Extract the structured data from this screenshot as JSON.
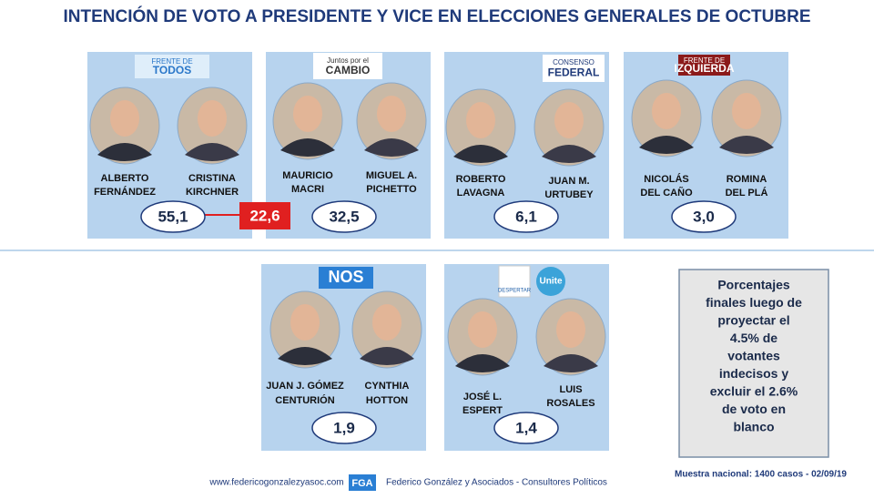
{
  "header": {
    "title": "INTENCIÓN DE VOTO A PRESIDENTE Y VICE EN ELECCIONES GENERALES DE OCTUBRE"
  },
  "panels": [
    {
      "logo": [
        "FRENTE DE",
        "TODOS"
      ],
      "candidates": [
        {
          "name": [
            "ALBERTO",
            "FERNÁNDEZ"
          ]
        },
        {
          "name": [
            "CRISTINA",
            "KIRCHNER"
          ]
        }
      ],
      "value": "55,1"
    },
    {
      "logo": [
        "Juntos por el",
        "CAMBIO"
      ],
      "candidates": [
        {
          "name": [
            "MAURICIO",
            "MACRI"
          ]
        },
        {
          "name": [
            "MIGUEL A.",
            "PICHETTO"
          ]
        }
      ],
      "value": "32,5"
    },
    {
      "logo": [
        "CONSENSO",
        "FEDERAL"
      ],
      "candidates": [
        {
          "name": [
            "ROBERTO",
            "LAVAGNA"
          ]
        },
        {
          "name": [
            "JUAN M.",
            "URTUBEY"
          ]
        }
      ],
      "value": "6,1"
    },
    {
      "logo": [
        "FRENTE DE",
        "IZQUIERDA"
      ],
      "candidates": [
        {
          "name": [
            "NICOLÁS",
            "DEL CAÑO"
          ]
        },
        {
          "name": [
            "ROMINA",
            "DEL PLÁ"
          ]
        }
      ],
      "value": "3,0"
    },
    {
      "logo": [
        "NOS"
      ],
      "candidates": [
        {
          "name": [
            "JUAN J. GÓMEZ",
            "CENTURIÓN"
          ]
        },
        {
          "name": [
            "CYNTHIA",
            "HOTTON"
          ]
        }
      ],
      "value": "1,9"
    },
    {
      "logo": [
        "DESPERTAR",
        "Unite"
      ],
      "candidates": [
        {
          "name": [
            "JOSÉ L.",
            "ESPERT"
          ]
        },
        {
          "name": [
            "LUIS",
            "ROSALES"
          ]
        }
      ],
      "value": "1,4"
    }
  ],
  "difference": "22,6",
  "note": [
    "Porcentajes",
    "finales luego de",
    "proyectar el",
    "4.5%  de",
    "votantes",
    "indecisos y",
    "excluir el 2.6%",
    "de voto en",
    "blanco"
  ],
  "footer": {
    "url": "www.federicogonzalezyasoc.com",
    "badge": "FGA",
    "firm": "Federico González y Asociados - Consultores Políticos",
    "sample": "Muestra nacional: 1400 casos - 02/09/19"
  }
}
